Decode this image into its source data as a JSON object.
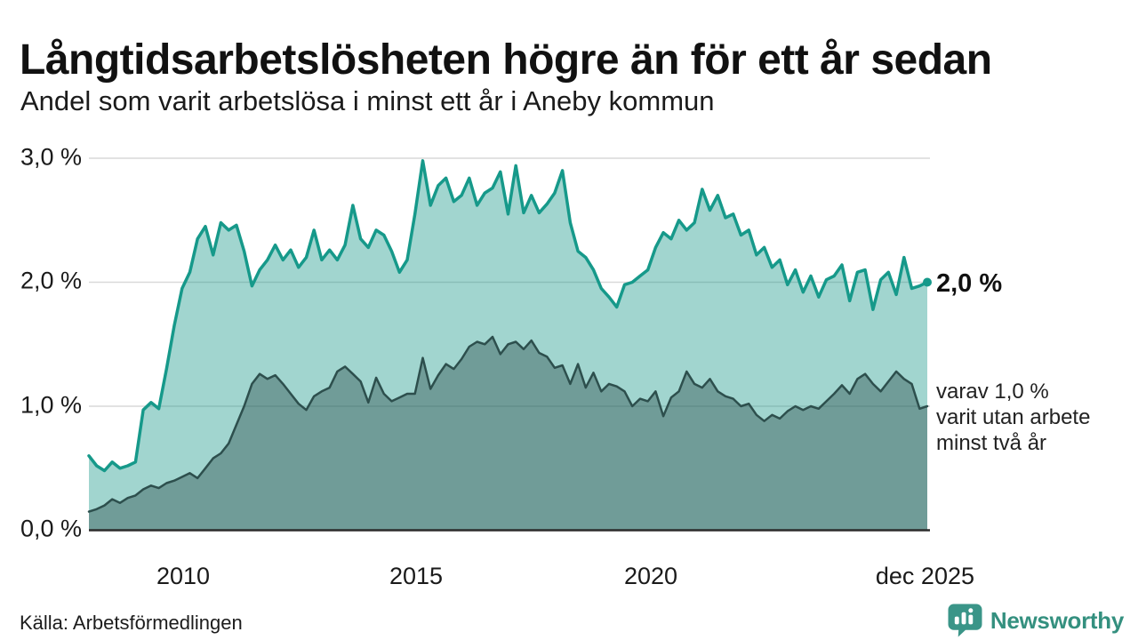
{
  "header": {
    "title": "Långtidsarbetslösheten högre än för ett år sedan",
    "subtitle": "Andel som varit arbetslösa i minst ett år i Aneby kommun"
  },
  "annotations": {
    "latest_total": "2,0 %",
    "secondary_line1": "varav 1,0 %",
    "secondary_line2": "varit utan arbete",
    "secondary_line3": "minst två år"
  },
  "footer": {
    "source": "Källa: Arbetsförmedlingen",
    "brand": "Newsworthy"
  },
  "colors": {
    "accent_teal": "#16998a",
    "area_teal_fill": "rgba(20,150,135,0.40)",
    "dark_slate": "#2d4f4d",
    "area_dark_fill": "rgba(45,79,77,0.42)",
    "gridline": "#d9d9d9",
    "baseline": "#2b2b2b",
    "logo_teal": "#3a9588"
  },
  "chart_data": {
    "type": "area",
    "title": "Långtidsarbetslösheten högre än för ett år sedan",
    "subtitle": "Andel som varit arbetslösa i minst ett år i Aneby kommun",
    "x_ticks": [
      "2010",
      "2015",
      "2020",
      "dec 2025"
    ],
    "y_ticks_top_to_bottom": [
      "3,0 %",
      "2,0 %",
      "1,0 %",
      "0,0 %"
    ],
    "ylim": [
      0,
      3
    ],
    "x_start_year": 2008,
    "x_end_label": "dec 2025",
    "unit": "%",
    "grid": true,
    "legend_position": "right-annotations",
    "latest": {
      "total_min_one_year": 2.0,
      "min_two_years": 1.0
    },
    "series": [
      {
        "name": "Andel arbetslösa i minst ett år",
        "color": "#16998a",
        "fill": "rgba(20,150,135,0.40)",
        "line_width": 3.5,
        "values": [
          0.6,
          0.52,
          0.48,
          0.55,
          0.5,
          0.52,
          0.55,
          0.97,
          1.03,
          0.98,
          1.3,
          1.65,
          1.95,
          2.08,
          2.35,
          2.45,
          2.22,
          2.48,
          2.42,
          2.46,
          2.25,
          1.97,
          2.1,
          2.18,
          2.3,
          2.18,
          2.26,
          2.12,
          2.2,
          2.42,
          2.18,
          2.26,
          2.18,
          2.3,
          2.62,
          2.35,
          2.28,
          2.42,
          2.38,
          2.25,
          2.08,
          2.18,
          2.55,
          2.98,
          2.62,
          2.78,
          2.84,
          2.65,
          2.7,
          2.84,
          2.62,
          2.72,
          2.76,
          2.89,
          2.55,
          2.94,
          2.56,
          2.7,
          2.56,
          2.63,
          2.72,
          2.9,
          2.48,
          2.25,
          2.2,
          2.1,
          1.95,
          1.88,
          1.8,
          1.98,
          2.0,
          2.05,
          2.1,
          2.28,
          2.4,
          2.35,
          2.5,
          2.42,
          2.48,
          2.75,
          2.58,
          2.7,
          2.52,
          2.55,
          2.38,
          2.42,
          2.22,
          2.28,
          2.12,
          2.18,
          1.98,
          2.1,
          1.92,
          2.05,
          1.88,
          2.02,
          2.05,
          2.14,
          1.85,
          2.08,
          2.1,
          1.78,
          2.02,
          2.08,
          1.9,
          2.2,
          1.95,
          1.97,
          2.0
        ]
      },
      {
        "name": "varav utan arbete minst två år",
        "color": "#2d4f4d",
        "fill": "rgba(45,79,77,0.42)",
        "line_width": 2.5,
        "values": [
          0.15,
          0.17,
          0.2,
          0.25,
          0.22,
          0.26,
          0.28,
          0.33,
          0.36,
          0.34,
          0.38,
          0.4,
          0.43,
          0.46,
          0.42,
          0.5,
          0.58,
          0.62,
          0.7,
          0.85,
          1.0,
          1.18,
          1.26,
          1.22,
          1.25,
          1.18,
          1.1,
          1.02,
          0.97,
          1.08,
          1.12,
          1.15,
          1.28,
          1.32,
          1.26,
          1.2,
          1.03,
          1.23,
          1.1,
          1.04,
          1.07,
          1.1,
          1.1,
          1.39,
          1.14,
          1.25,
          1.34,
          1.3,
          1.38,
          1.48,
          1.52,
          1.5,
          1.56,
          1.42,
          1.5,
          1.52,
          1.46,
          1.53,
          1.43,
          1.4,
          1.31,
          1.33,
          1.18,
          1.34,
          1.15,
          1.27,
          1.12,
          1.18,
          1.16,
          1.12,
          1.0,
          1.06,
          1.04,
          1.12,
          0.92,
          1.07,
          1.12,
          1.28,
          1.18,
          1.15,
          1.22,
          1.12,
          1.08,
          1.06,
          1.0,
          1.02,
          0.93,
          0.88,
          0.93,
          0.9,
          0.96,
          1.0,
          0.97,
          1.0,
          0.98,
          1.04,
          1.1,
          1.17,
          1.1,
          1.22,
          1.26,
          1.18,
          1.12,
          1.2,
          1.28,
          1.22,
          1.18,
          0.98,
          1.0
        ]
      }
    ]
  }
}
